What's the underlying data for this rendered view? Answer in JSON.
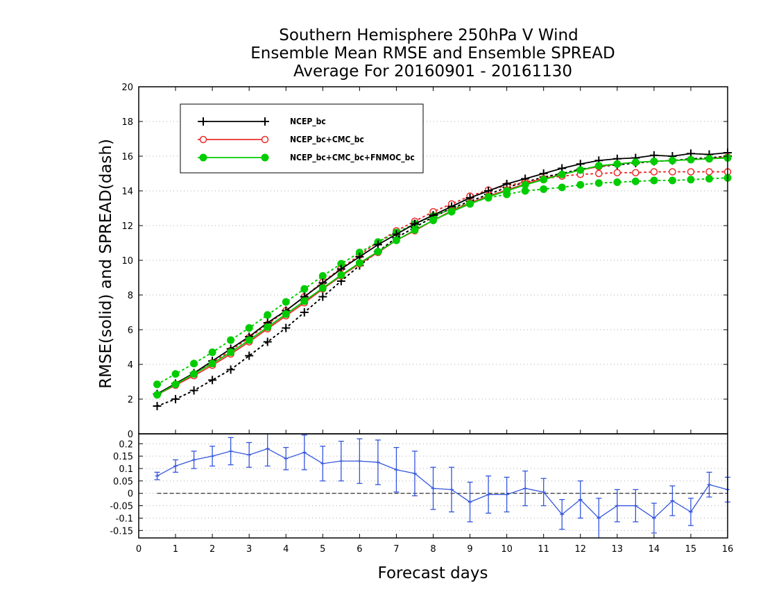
{
  "chart_data": [
    {
      "type": "line",
      "title": [
        "Southern Hemisphere 250hPa V Wind",
        "Ensemble Mean RMSE and Ensemble SPREAD",
        "Average For 20160901 - 20161130"
      ],
      "xlabel": "Forecast days",
      "ylabel": "RMSE(solid) and SPREAD(dash)",
      "xlim": [
        0,
        16
      ],
      "ylim": [
        0,
        20
      ],
      "xticks": [
        "0",
        "1",
        "2",
        "3",
        "4",
        "5",
        "6",
        "7",
        "8",
        "9",
        "10",
        "11",
        "12",
        "13",
        "14",
        "15",
        "16"
      ],
      "yticks": [
        "2",
        "4",
        "6",
        "8",
        "10",
        "12",
        "14",
        "16",
        "18",
        "20"
      ],
      "grid": "horizontal dotted",
      "legend_position": "top-left",
      "x": [
        0.5,
        1,
        1.5,
        2,
        2.5,
        3,
        3.5,
        4,
        4.5,
        5,
        5.5,
        6,
        6.5,
        7,
        7.5,
        8,
        8.5,
        9,
        9.5,
        10,
        10.5,
        11,
        11.5,
        12,
        12.5,
        13,
        13.5,
        14,
        14.5,
        15,
        15.5,
        16
      ],
      "series": [
        {
          "name": "NCEP_bc",
          "color": "#000000",
          "marker": "plus",
          "rmse": [
            2.3,
            2.9,
            3.5,
            4.2,
            4.9,
            5.6,
            6.4,
            7.1,
            7.9,
            8.7,
            9.5,
            10.2,
            10.9,
            11.5,
            12.1,
            12.6,
            13.1,
            13.6,
            14.0,
            14.4,
            14.7,
            15.0,
            15.3,
            15.55,
            15.75,
            15.85,
            15.9,
            16.05,
            16.0,
            16.15,
            16.1,
            16.2
          ],
          "spread": [
            1.6,
            2.0,
            2.5,
            3.1,
            3.7,
            4.5,
            5.3,
            6.1,
            7.0,
            7.9,
            8.8,
            9.7,
            10.5,
            11.3,
            11.9,
            12.5,
            13.0,
            13.4,
            13.8,
            14.2,
            14.5,
            14.8,
            15.0,
            15.25,
            15.4,
            15.5,
            15.6,
            15.7,
            15.75,
            15.85,
            15.9,
            16.0
          ]
        },
        {
          "name": "NCEP_bc+CMC_bc",
          "color": "#ee2b2b",
          "marker": "open-circle",
          "rmse": [
            2.25,
            2.8,
            3.35,
            3.95,
            4.6,
            5.3,
            6.05,
            6.8,
            7.55,
            8.35,
            9.1,
            9.8,
            10.45,
            11.15,
            11.7,
            12.3,
            12.85,
            13.3,
            13.7,
            14.05,
            14.4,
            14.7,
            14.95,
            15.2,
            15.4,
            15.55,
            15.65,
            15.7,
            15.75,
            15.8,
            15.85,
            15.95
          ],
          "spread": [
            2.25,
            2.85,
            3.45,
            4.1,
            4.8,
            5.55,
            6.3,
            7.1,
            7.9,
            8.75,
            9.55,
            10.3,
            11.05,
            11.7,
            12.25,
            12.8,
            13.25,
            13.7,
            14.05,
            14.3,
            14.5,
            14.7,
            14.85,
            14.95,
            15.0,
            15.05,
            15.05,
            15.1,
            15.1,
            15.1,
            15.1,
            15.1
          ]
        },
        {
          "name": "NCEP_bc+CMC_bc+FNMOC_bc",
          "color": "#00cc00",
          "marker": "filled-circle",
          "rmse": [
            2.25,
            2.85,
            3.45,
            4.05,
            4.7,
            5.4,
            6.15,
            6.9,
            7.65,
            8.4,
            9.15,
            9.85,
            10.5,
            11.15,
            11.75,
            12.3,
            12.8,
            13.25,
            13.65,
            14.0,
            14.35,
            14.65,
            14.95,
            15.2,
            15.45,
            15.55,
            15.65,
            15.7,
            15.75,
            15.8,
            15.85,
            15.9
          ],
          "spread": [
            2.85,
            3.45,
            4.05,
            4.7,
            5.4,
            6.1,
            6.85,
            7.6,
            8.35,
            9.1,
            9.8,
            10.45,
            11.05,
            11.6,
            12.1,
            12.55,
            12.95,
            13.3,
            13.6,
            13.8,
            14.0,
            14.1,
            14.2,
            14.35,
            14.45,
            14.5,
            14.55,
            14.6,
            14.6,
            14.65,
            14.7,
            14.75
          ]
        }
      ]
    },
    {
      "type": "line",
      "title": "",
      "xlabel": "Forecast days",
      "ylabel": "",
      "xlim": [
        0,
        16
      ],
      "ylim": [
        -0.18,
        0.24
      ],
      "yticks": [
        "0.2",
        "0.15",
        "0.1",
        "0.05",
        "0",
        "-0.05",
        "-0.1",
        "-0.15"
      ],
      "top_label": "0",
      "grid": "horizontal dotted",
      "series": [
        {
          "name": "",
          "color": "#3355dd",
          "marker": "error-bar",
          "x": [
            0.5,
            1,
            1.5,
            2,
            2.5,
            3,
            3.5,
            4,
            4.5,
            5,
            5.5,
            6,
            6.5,
            7,
            7.5,
            8,
            8.5,
            9,
            9.5,
            10,
            10.5,
            11,
            11.5,
            12,
            12.5,
            13,
            13.5,
            14,
            14.5,
            15,
            15.5,
            16
          ],
          "y": [
            0.07,
            0.11,
            0.135,
            0.15,
            0.17,
            0.155,
            0.18,
            0.14,
            0.165,
            0.12,
            0.13,
            0.13,
            0.125,
            0.095,
            0.08,
            0.02,
            0.015,
            -0.035,
            -0.005,
            -0.005,
            0.02,
            0.005,
            -0.085,
            -0.025,
            -0.1,
            -0.05,
            -0.05,
            -0.1,
            -0.03,
            -0.075,
            0.035,
            0.015
          ],
          "err": [
            0.015,
            0.025,
            0.035,
            0.04,
            0.055,
            0.05,
            0.07,
            0.045,
            0.07,
            0.07,
            0.08,
            0.09,
            0.09,
            0.09,
            0.09,
            0.085,
            0.09,
            0.08,
            0.075,
            0.07,
            0.07,
            0.055,
            0.06,
            0.075,
            0.08,
            0.065,
            0.065,
            0.06,
            0.06,
            0.055,
            0.05,
            0.05
          ]
        }
      ],
      "reference_line": 0
    }
  ]
}
